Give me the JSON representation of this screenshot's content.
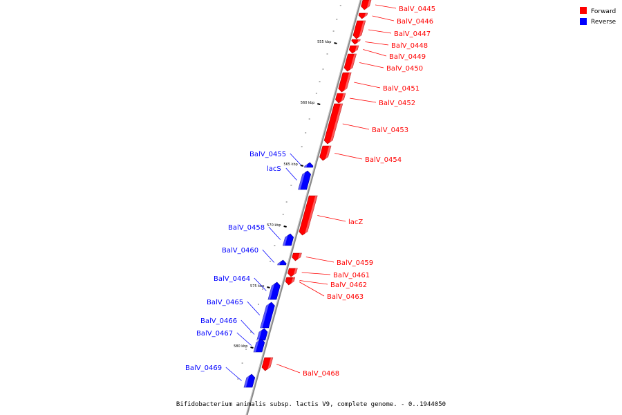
{
  "caption": "Bifidobacterium animalis subsp. lactis V9, complete genome. - 0..1944050",
  "legend": [
    {
      "label": "Forward",
      "color": "#ff0000"
    },
    {
      "label": "Reverse",
      "color": "#0000ff"
    }
  ],
  "colors": {
    "forward": "#ff0000",
    "reverse": "#0000ff",
    "backbone": "#888888"
  },
  "kbp_marks": [
    "555 kbp",
    "560 kbp",
    "565 kbp",
    "570 kbp",
    "575 kbp",
    "580 kbp"
  ],
  "genes": [
    {
      "name": "BalV_0445",
      "strand": "forward"
    },
    {
      "name": "BalV_0446",
      "strand": "forward"
    },
    {
      "name": "BalV_0447",
      "strand": "forward"
    },
    {
      "name": "BalV_0448",
      "strand": "forward"
    },
    {
      "name": "BalV_0449",
      "strand": "forward"
    },
    {
      "name": "BalV_0450",
      "strand": "forward"
    },
    {
      "name": "BalV_0451",
      "strand": "forward"
    },
    {
      "name": "BalV_0452",
      "strand": "forward"
    },
    {
      "name": "BalV_0453",
      "strand": "forward"
    },
    {
      "name": "BalV_0454",
      "strand": "forward"
    },
    {
      "name": "BalV_0455",
      "strand": "reverse"
    },
    {
      "name": "lacS",
      "strand": "reverse"
    },
    {
      "name": "lacZ",
      "strand": "forward"
    },
    {
      "name": "BalV_0458",
      "strand": "reverse"
    },
    {
      "name": "BalV_0460",
      "strand": "reverse"
    },
    {
      "name": "BalV_0459",
      "strand": "forward"
    },
    {
      "name": "BalV_0461",
      "strand": "forward"
    },
    {
      "name": "BalV_0462",
      "strand": "forward"
    },
    {
      "name": "BalV_0463",
      "strand": "forward"
    },
    {
      "name": "BalV_0464",
      "strand": "reverse"
    },
    {
      "name": "BalV_0465",
      "strand": "reverse"
    },
    {
      "name": "BalV_0466",
      "strand": "reverse"
    },
    {
      "name": "BalV_0467",
      "strand": "reverse"
    },
    {
      "name": "BalV_0468",
      "strand": "forward"
    },
    {
      "name": "BalV_0469",
      "strand": "reverse"
    }
  ]
}
